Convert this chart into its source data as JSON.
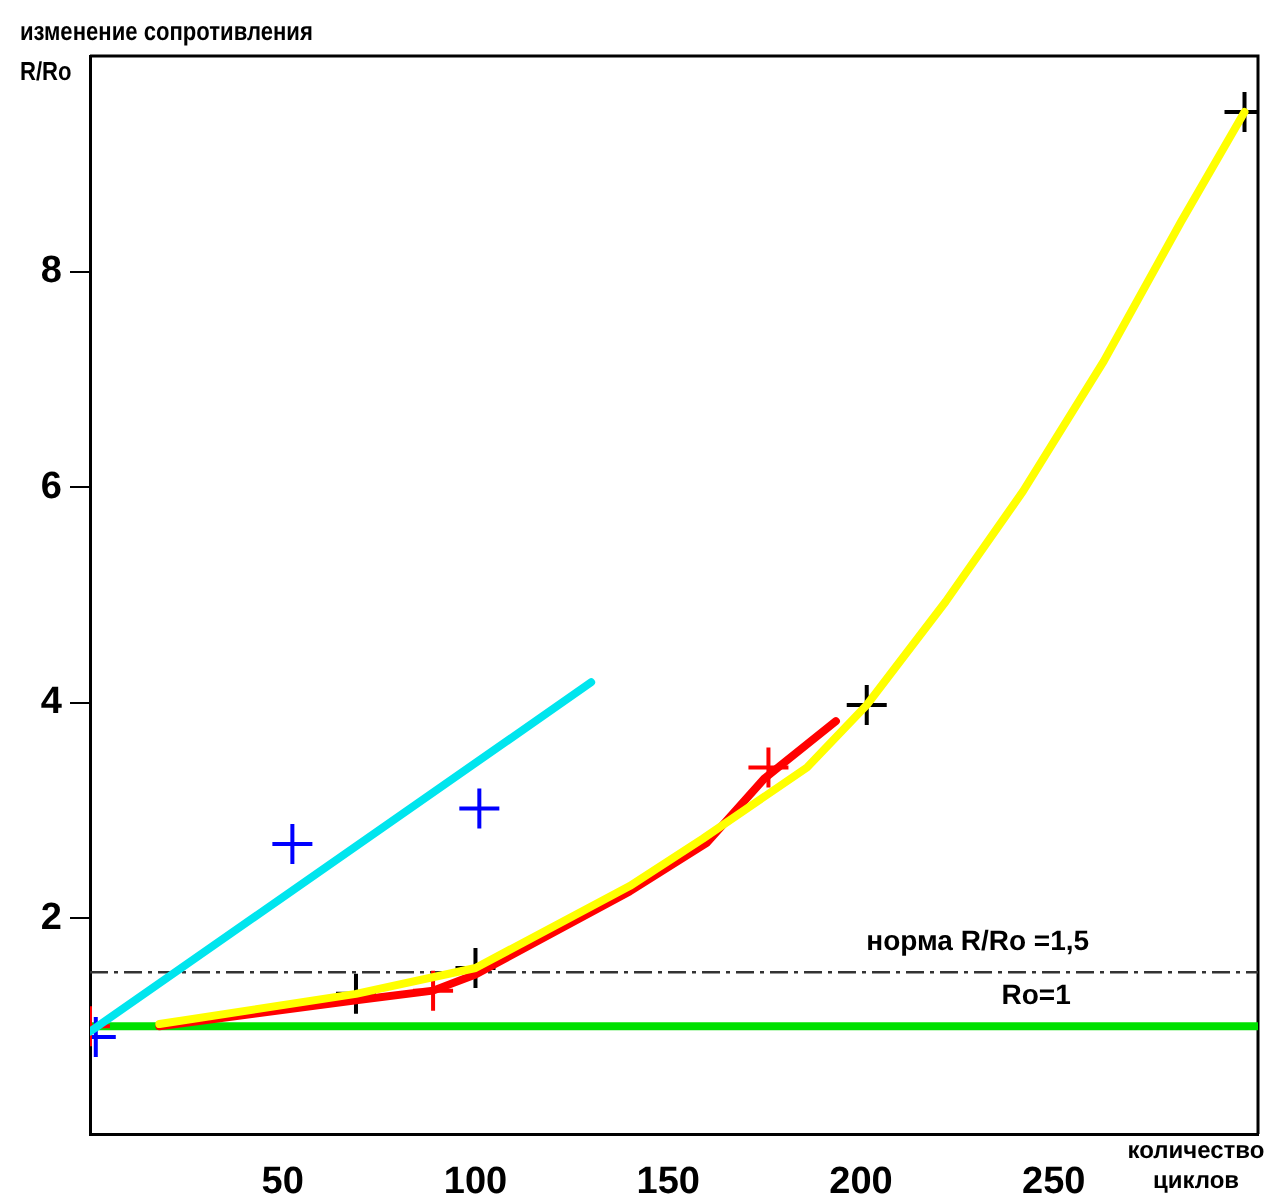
{
  "chart_data": {
    "type": "line",
    "ylabel": "изменение сопротивления R/Ro",
    "xlabel": "количество циклов",
    "xlim": [
      0,
      303
    ],
    "xticks": [
      50,
      100,
      150,
      200,
      250
    ],
    "ylim": [
      0,
      10
    ],
    "yticks": [
      2,
      4,
      6,
      8
    ],
    "grid": false,
    "legend": false,
    "line_style": "solid",
    "series": [
      {
        "type": "line",
        "color": "#ffff00",
        "x": [
          18,
          69,
          100,
          140,
          159,
          186,
          201.5,
          222,
          242,
          263,
          283,
          299.5
        ],
        "values": [
          1.02,
          1.3,
          1.54,
          2.3,
          2.74,
          3.4,
          3.98,
          4.94,
          5.96,
          7.17,
          8.46,
          9.48
        ]
      },
      {
        "type": "line",
        "color": "#ff0000",
        "x": [
          18,
          69,
          89,
          100,
          140,
          160,
          175,
          193.5
        ],
        "values": [
          1.0,
          1.24,
          1.33,
          1.48,
          2.25,
          2.7,
          3.3,
          3.83
        ]
      },
      {
        "type": "line",
        "color": "#00e5ee",
        "x": [
          0,
          130
        ],
        "values": [
          0.95,
          4.19
        ]
      },
      {
        "type": "scatter",
        "marker": "cross",
        "color": "#000000",
        "x": [
          69,
          100,
          201.5,
          299.5
        ],
        "values": [
          1.3,
          1.54,
          3.98,
          9.48
        ]
      },
      {
        "type": "scatter",
        "marker": "cross",
        "color": "#ff0000",
        "x": [
          0,
          89,
          176
        ],
        "values": [
          1.0,
          1.33,
          3.4
        ]
      },
      {
        "type": "scatter",
        "marker": "cross",
        "color": "#0000ff",
        "x": [
          1.5,
          52.5,
          101
        ],
        "values": [
          0.9,
          2.69,
          3.02
        ]
      }
    ],
    "ref_lines": [
      {
        "axis": "y",
        "value": 1.5,
        "label": "норма R/Ro =1,5",
        "color": "#333333",
        "line_style": "dashed"
      },
      {
        "axis": "y",
        "value": 1,
        "label": "Ro=1",
        "color": "#00e000",
        "line_style": "solid"
      }
    ]
  }
}
